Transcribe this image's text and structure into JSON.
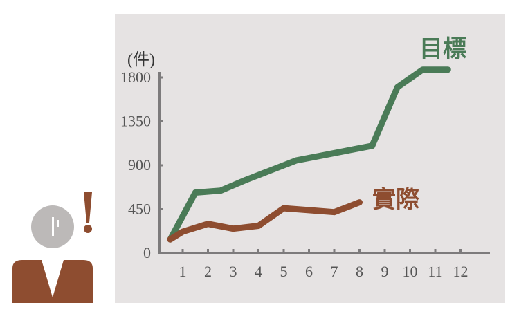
{
  "colors": {
    "panel_background": "#e6e3e3",
    "axis": "#7d7b7c",
    "target_series": "#4a7b57",
    "actual_series": "#8e4d30",
    "person_head": "#bcb9b8",
    "person_body": "#8e4d30",
    "exclamation": "#8e4d30"
  },
  "icons": [
    "person-icon",
    "exclamation-icon"
  ],
  "chart_data": {
    "type": "line",
    "unit_label": "(件)",
    "x": [
      1,
      2,
      3,
      4,
      5,
      6,
      7,
      8,
      9,
      10,
      11,
      12
    ],
    "x_tick_labels": [
      "1",
      "2",
      "3",
      "4",
      "5",
      "6",
      "7",
      "8",
      "9",
      "10",
      "11",
      "12"
    ],
    "ylim": [
      0,
      1800
    ],
    "y_ticks": [
      0,
      450,
      900,
      1350,
      1800
    ],
    "y_tick_labels": [
      "0",
      "450",
      "900",
      "1350",
      "1800"
    ],
    "grid": false,
    "legend": "labels placed at the end of each line",
    "series": [
      {
        "name": "目標",
        "color": "#4a7b57",
        "x": [
          0,
          1.5,
          2.5,
          3.5,
          4.5,
          5.5,
          6.5,
          7.5,
          8.5,
          9.5,
          10.5,
          11.5
        ],
        "values": [
          140,
          620,
          640,
          750,
          850,
          950,
          1000,
          1050,
          1100,
          1700,
          1880,
          1880
        ]
      },
      {
        "name": "實際",
        "color": "#8e4d30",
        "x": [
          0,
          1,
          2,
          3,
          4,
          5,
          6,
          7,
          8
        ],
        "values": [
          140,
          220,
          300,
          250,
          280,
          460,
          440,
          420,
          520
        ]
      }
    ]
  }
}
